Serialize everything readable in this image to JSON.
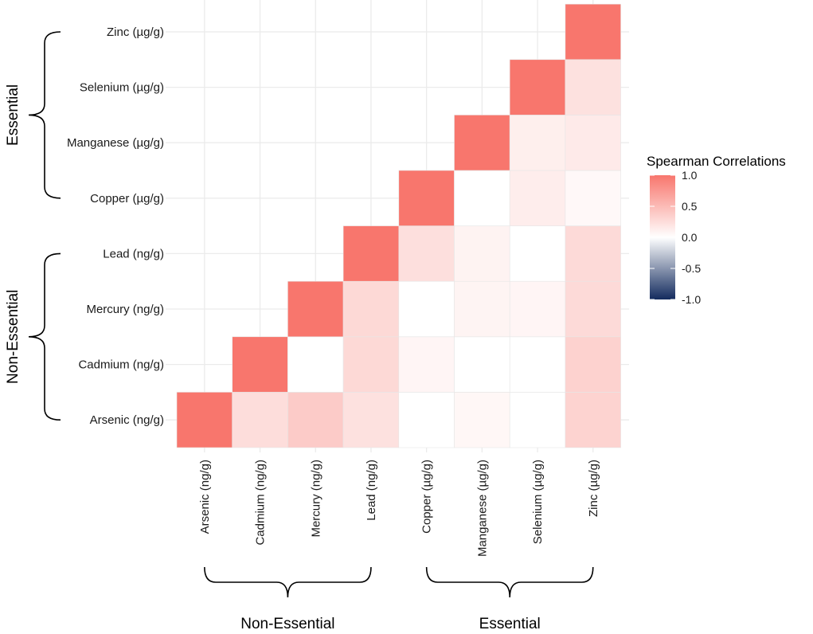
{
  "chart_data": {
    "type": "heatmap",
    "variables": [
      "Arsenic (ng/g)",
      "Cadmium (ng/g)",
      "Mercury (ng/g)",
      "Lead (ng/g)",
      "Copper (µg/g)",
      "Manganese (µg/g)",
      "Selenium (µg/g)",
      "Zinc (µg/g)"
    ],
    "cells": [
      {
        "row": "Arsenic (ng/g)",
        "col": "Arsenic (ng/g)",
        "value": 1.0
      },
      {
        "row": "Arsenic (ng/g)",
        "col": "Cadmium (ng/g)",
        "value": 0.25
      },
      {
        "row": "Arsenic (ng/g)",
        "col": "Mercury (ng/g)",
        "value": 0.38
      },
      {
        "row": "Arsenic (ng/g)",
        "col": "Lead (ng/g)",
        "value": 0.22
      },
      {
        "row": "Arsenic (ng/g)",
        "col": "Copper (µg/g)",
        "value": 0.0
      },
      {
        "row": "Arsenic (ng/g)",
        "col": "Manganese (µg/g)",
        "value": 0.06
      },
      {
        "row": "Arsenic (ng/g)",
        "col": "Selenium (µg/g)",
        "value": 0.0
      },
      {
        "row": "Arsenic (ng/g)",
        "col": "Zinc (µg/g)",
        "value": 0.32
      },
      {
        "row": "Cadmium (ng/g)",
        "col": "Cadmium (ng/g)",
        "value": 1.0
      },
      {
        "row": "Cadmium (ng/g)",
        "col": "Mercury (ng/g)",
        "value": 0.0
      },
      {
        "row": "Cadmium (ng/g)",
        "col": "Lead (ng/g)",
        "value": 0.28
      },
      {
        "row": "Cadmium (ng/g)",
        "col": "Copper (µg/g)",
        "value": 0.07
      },
      {
        "row": "Cadmium (ng/g)",
        "col": "Manganese (µg/g)",
        "value": 0.0
      },
      {
        "row": "Cadmium (ng/g)",
        "col": "Selenium (µg/g)",
        "value": 0.0
      },
      {
        "row": "Cadmium (ng/g)",
        "col": "Zinc (µg/g)",
        "value": 0.33
      },
      {
        "row": "Mercury (ng/g)",
        "col": "Mercury (ng/g)",
        "value": 1.0
      },
      {
        "row": "Mercury (ng/g)",
        "col": "Lead (ng/g)",
        "value": 0.28
      },
      {
        "row": "Mercury (ng/g)",
        "col": "Copper (µg/g)",
        "value": 0.0
      },
      {
        "row": "Mercury (ng/g)",
        "col": "Manganese (µg/g)",
        "value": 0.08
      },
      {
        "row": "Mercury (ng/g)",
        "col": "Selenium (µg/g)",
        "value": 0.07
      },
      {
        "row": "Mercury (ng/g)",
        "col": "Zinc (µg/g)",
        "value": 0.27
      },
      {
        "row": "Lead (ng/g)",
        "col": "Lead (ng/g)",
        "value": 1.0
      },
      {
        "row": "Lead (ng/g)",
        "col": "Copper (µg/g)",
        "value": 0.23
      },
      {
        "row": "Lead (ng/g)",
        "col": "Manganese (µg/g)",
        "value": 0.09
      },
      {
        "row": "Lead (ng/g)",
        "col": "Selenium (µg/g)",
        "value": 0.0
      },
      {
        "row": "Lead (ng/g)",
        "col": "Zinc (µg/g)",
        "value": 0.27
      },
      {
        "row": "Copper (µg/g)",
        "col": "Copper (µg/g)",
        "value": 1.0
      },
      {
        "row": "Copper (µg/g)",
        "col": "Manganese (µg/g)",
        "value": 0.0
      },
      {
        "row": "Copper (µg/g)",
        "col": "Selenium (µg/g)",
        "value": 0.13
      },
      {
        "row": "Copper (µg/g)",
        "col": "Zinc (µg/g)",
        "value": 0.05
      },
      {
        "row": "Manganese (µg/g)",
        "col": "Manganese (µg/g)",
        "value": 1.0
      },
      {
        "row": "Manganese (µg/g)",
        "col": "Selenium (µg/g)",
        "value": 0.12
      },
      {
        "row": "Manganese (µg/g)",
        "col": "Zinc (µg/g)",
        "value": 0.15
      },
      {
        "row": "Selenium (µg/g)",
        "col": "Selenium (µg/g)",
        "value": 1.0
      },
      {
        "row": "Selenium (µg/g)",
        "col": "Zinc (µg/g)",
        "value": 0.22
      },
      {
        "row": "Zinc (µg/g)",
        "col": "Zinc (µg/g)",
        "value": 1.0
      }
    ],
    "groups": [
      {
        "label": "Non-Essential",
        "members": [
          "Arsenic (ng/g)",
          "Cadmium (ng/g)",
          "Mercury (ng/g)",
          "Lead (ng/g)"
        ]
      },
      {
        "label": "Essential",
        "members": [
          "Copper (µg/g)",
          "Manganese (µg/g)",
          "Selenium (µg/g)",
          "Zinc (µg/g)"
        ]
      }
    ],
    "legend": {
      "title": "Spearman Correlations",
      "ticks": [
        "1.0",
        "0.5",
        "0.0",
        "-0.5",
        "-1.0"
      ],
      "range": [
        -1.0,
        1.0
      ],
      "position": "right"
    },
    "colors": {
      "high": "#F8766D",
      "mid": "#FFFFFF",
      "low": "#132B5E",
      "grid": "#EBEBEB",
      "tile_border": "#E6E6E6"
    }
  }
}
